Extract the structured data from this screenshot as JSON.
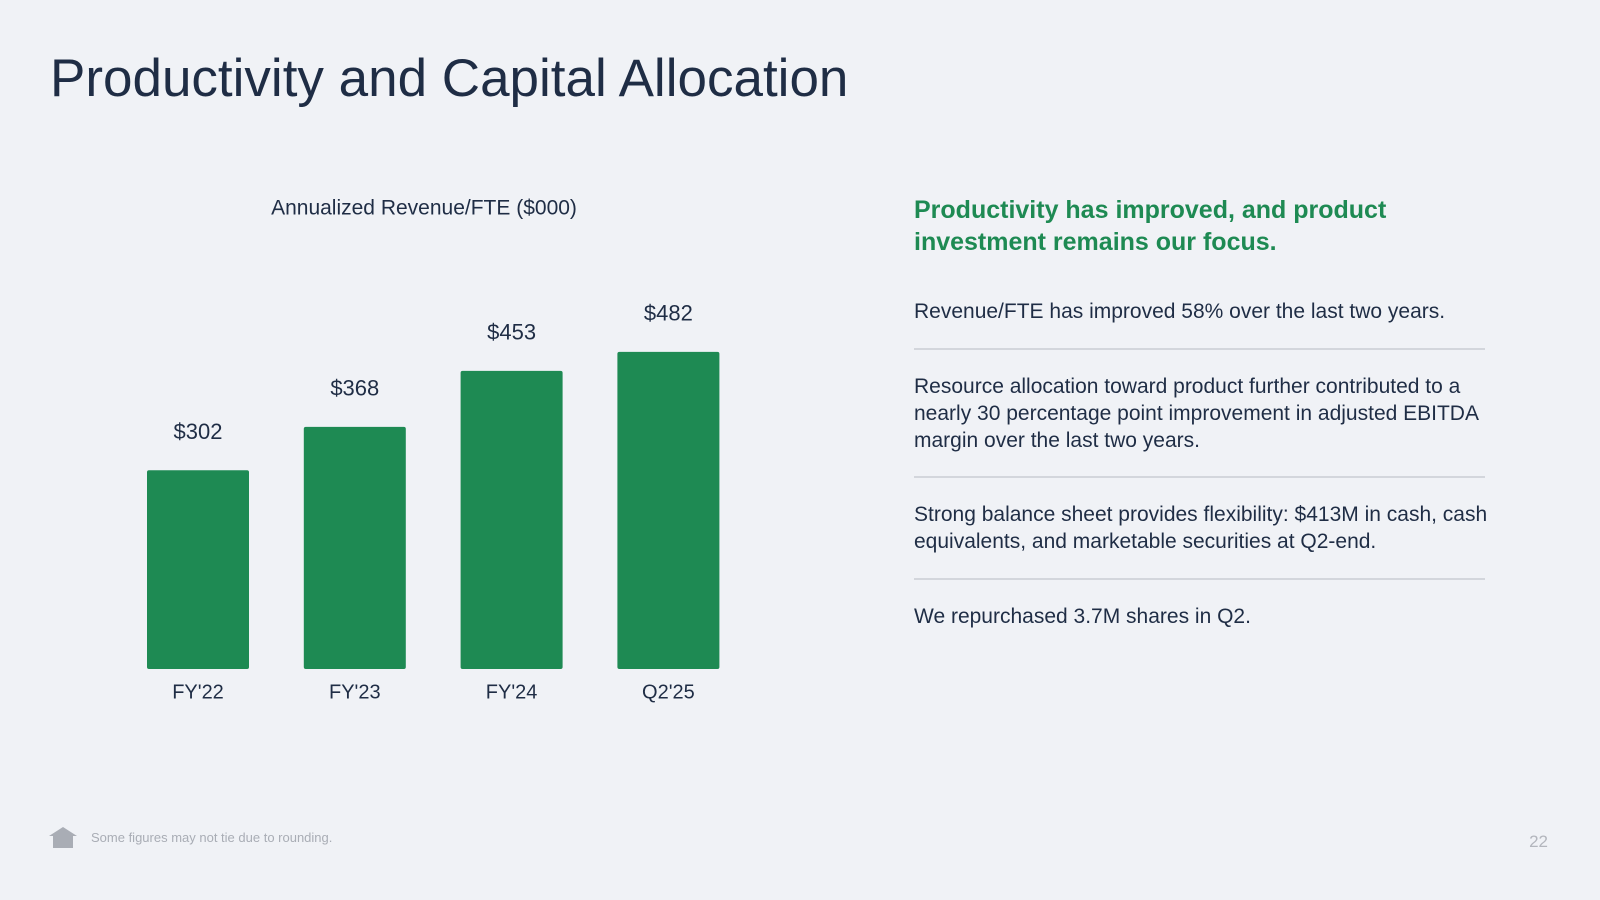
{
  "title": "Productivity and Capital Allocation",
  "chart_data": {
    "type": "bar",
    "title": "Annualized Revenue/FTE ($000)",
    "categories": [
      "FY'22",
      "FY'23",
      "FY'24",
      "Q2'25"
    ],
    "values": [
      302,
      368,
      453,
      482
    ],
    "value_labels": [
      "$302",
      "$368",
      "$453",
      "$482"
    ],
    "color": "#1e8a53"
  },
  "highlights": {
    "heading": "Productivity has improved, and product investment remains our focus.",
    "points": [
      "Revenue/FTE has improved 58% over the last two years.",
      "Resource allocation toward product further contributed to a nearly 30 percentage point improvement in adjusted EBITDA margin over the last two years.",
      "Strong balance sheet provides flexibility: $413M in cash, cash equivalents, and marketable securities at Q2-end.",
      "We repurchased 3.7M shares in Q2."
    ]
  },
  "footer": {
    "note": "Some figures may not tie due to rounding.",
    "page": "22"
  }
}
